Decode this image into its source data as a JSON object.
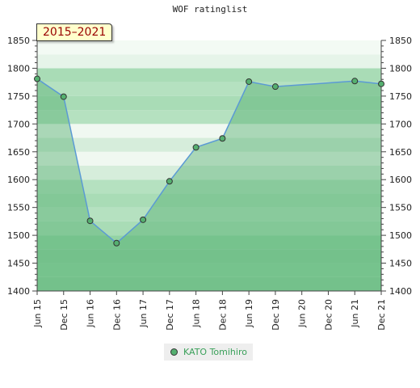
{
  "title": "WOF ratinglist",
  "period_label": "2015–2021",
  "chart_data": {
    "type": "area",
    "title": "WOF ratinglist",
    "xlabel": "",
    "ylabel": "",
    "categories": [
      "Jun 15",
      "Dec 15",
      "Jun 16",
      "Dec 16",
      "Jun 17",
      "Dec 17",
      "Jun 18",
      "Dec 18",
      "Jun 19",
      "Dec 19",
      "Jun 20",
      "Dec 20",
      "Jun 21",
      "Dec 21"
    ],
    "ylim": [
      1400,
      1850
    ],
    "yticks": [
      1400,
      1450,
      1500,
      1550,
      1600,
      1650,
      1700,
      1750,
      1800,
      1850
    ],
    "grid": true,
    "legend_position": "bottom-center",
    "series": [
      {
        "name": "KATO Tomihiro",
        "color": "#55b070",
        "points": [
          {
            "x": 0,
            "y": 1781
          },
          {
            "x": 1,
            "y": 1749
          },
          {
            "x": 2,
            "y": 1526
          },
          {
            "x": 3,
            "y": 1486
          },
          {
            "x": 4,
            "y": 1528
          },
          {
            "x": 5,
            "y": 1597
          },
          {
            "x": 6,
            "y": 1658
          },
          {
            "x": 7,
            "y": 1674
          },
          {
            "x": 8,
            "y": 1776
          },
          {
            "x": 9,
            "y": 1767
          },
          {
            "x": 12,
            "y": 1777
          },
          {
            "x": 13,
            "y": 1772
          }
        ]
      }
    ]
  }
}
